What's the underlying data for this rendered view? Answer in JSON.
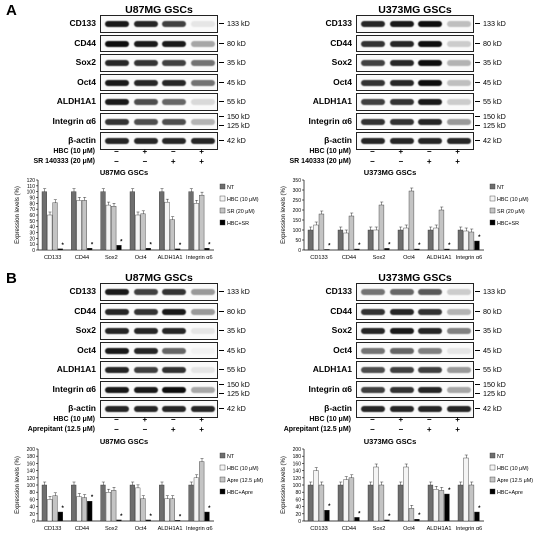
{
  "panels": [
    {
      "letter": "A",
      "blots": [
        {
          "title": "U87MG GSCs",
          "proteins": [
            "CD133",
            "CD44",
            "Sox2",
            "Oct4",
            "ALDH1A1",
            "Integrin α6",
            "β-actin"
          ],
          "kd": [
            [
              "133 kD"
            ],
            [
              "80 kD"
            ],
            [
              "35 kD"
            ],
            [
              "45 kD"
            ],
            [
              "55 kD"
            ],
            [
              "150 kD",
              "125 kD"
            ],
            [
              "42 kD"
            ]
          ],
          "intensity": [
            [
              0.9,
              0.85,
              0.75,
              0.1
            ],
            [
              0.95,
              0.9,
              0.9,
              0.35
            ],
            [
              0.85,
              0.8,
              0.75,
              0.55
            ],
            [
              0.9,
              0.85,
              0.85,
              0.55
            ],
            [
              0.9,
              0.7,
              0.6,
              0.15
            ],
            [
              0.8,
              0.7,
              0.7,
              0.3
            ],
            [
              0.85,
              0.85,
              0.85,
              0.85
            ]
          ],
          "treatments": [
            {
              "label": "HBC (10 μM)",
              "marks": [
                "−",
                "+",
                "−",
                "+"
              ]
            },
            {
              "label": "SR 140333 (20 μM)",
              "marks": [
                "−",
                "−",
                "+",
                "+"
              ]
            }
          ]
        },
        {
          "title": "U373MG GSCs",
          "proteins": [
            "CD133",
            "CD44",
            "Sox2",
            "Oct4",
            "ALDH1A1",
            "Integrin α6",
            "β-actin"
          ],
          "kd": [
            [
              "133 kD"
            ],
            [
              "80 kD"
            ],
            [
              "35 kD"
            ],
            [
              "45 kD"
            ],
            [
              "55 kD"
            ],
            [
              "150 kD",
              "125 kD"
            ],
            [
              "42 kD"
            ]
          ],
          "intensity": [
            [
              0.85,
              0.9,
              0.95,
              0.25
            ],
            [
              0.8,
              0.85,
              0.95,
              0.2
            ],
            [
              0.75,
              0.85,
              0.95,
              0.3
            ],
            [
              0.8,
              0.85,
              0.95,
              0.25
            ],
            [
              0.75,
              0.8,
              0.9,
              0.2
            ],
            [
              0.8,
              0.8,
              0.85,
              0.4
            ],
            [
              0.85,
              0.85,
              0.85,
              0.85
            ]
          ],
          "treatments": [
            {
              "label": "HBC (10 μM)",
              "marks": [
                "−",
                "+",
                "−",
                "+"
              ]
            },
            {
              "label": "SR 140333 (20 μM)",
              "marks": [
                "−",
                "−",
                "+",
                "+"
              ]
            }
          ]
        }
      ]
    },
    {
      "letter": "B",
      "blots": [
        {
          "title": "U87MG GSCs",
          "proteins": [
            "CD133",
            "CD44",
            "Sox2",
            "Oct4",
            "ALDH1A1",
            "Integrin α6",
            "β-actin"
          ],
          "kd": [
            [
              "133 kD"
            ],
            [
              "80 kD"
            ],
            [
              "35 kD"
            ],
            [
              "45 kD"
            ],
            [
              "55 kD"
            ],
            [
              "150 kD",
              "125 kD"
            ],
            [
              "42 kD"
            ]
          ],
          "intensity": [
            [
              0.9,
              0.75,
              0.8,
              0.4
            ],
            [
              0.85,
              0.8,
              0.9,
              0.4
            ],
            [
              0.85,
              0.85,
              0.85,
              0.1
            ],
            [
              0.9,
              0.85,
              0.6,
              0.05
            ],
            [
              0.85,
              0.75,
              0.8,
              0.1
            ],
            [
              0.9,
              0.9,
              0.95,
              0.35
            ],
            [
              0.85,
              0.85,
              0.85,
              0.85
            ]
          ],
          "treatments": [
            {
              "label": "HBC (10 μM)",
              "marks": [
                "−",
                "+",
                "−",
                "+"
              ]
            },
            {
              "label": "Aprepitant (12.5 μM)",
              "marks": [
                "−",
                "−",
                "+",
                "+"
              ]
            }
          ]
        },
        {
          "title": "U373MG GSCs",
          "proteins": [
            "CD133",
            "CD44",
            "Sox2",
            "Oct4",
            "ALDH1A1",
            "Integrin α6",
            "β-actin"
          ],
          "kd": [
            [
              "133 kD"
            ],
            [
              "80 kD"
            ],
            [
              "35 kD"
            ],
            [
              "45 kD"
            ],
            [
              "55 kD"
            ],
            [
              "150 kD",
              "125 kD"
            ],
            [
              "42 kD"
            ]
          ],
          "intensity": [
            [
              0.55,
              0.6,
              0.65,
              0.2
            ],
            [
              0.8,
              0.85,
              0.8,
              0.3
            ],
            [
              0.85,
              0.9,
              0.85,
              0.5
            ],
            [
              0.55,
              0.6,
              0.5,
              0.1
            ],
            [
              0.7,
              0.75,
              0.75,
              0.4
            ],
            [
              0.75,
              0.8,
              0.85,
              0.35
            ],
            [
              0.85,
              0.85,
              0.85,
              0.85
            ]
          ],
          "treatments": [
            {
              "label": "HBC (10 μM)",
              "marks": [
                "−",
                "+",
                "−",
                "+"
              ]
            },
            {
              "label": "Aprepitant (12.5 μM)",
              "marks": [
                "−",
                "−",
                "+",
                "+"
              ]
            }
          ]
        }
      ]
    }
  ],
  "chart_data": [
    {
      "type": "bar",
      "title": "U87MG GSCs",
      "ylabel": "Expression levels (%)",
      "ylim": [
        0,
        120
      ],
      "yticks": [
        0,
        10,
        20,
        30,
        40,
        50,
        60,
        70,
        80,
        90,
        100,
        110,
        120
      ],
      "categories": [
        "CD133",
        "CD44",
        "Sox2",
        "Oct4",
        "ALDH1A1",
        "Integrin α6"
      ],
      "series": [
        {
          "name": "NT",
          "values": [
            100,
            100,
            100,
            100,
            100,
            100
          ]
        },
        {
          "name": "HBC (10 μM)",
          "values": [
            60,
            85,
            77,
            60,
            82,
            80
          ]
        },
        {
          "name": "SR (20 μM)",
          "values": [
            81,
            85,
            75,
            62,
            52,
            94
          ]
        },
        {
          "name": "HBC+SR",
          "values": [
            2,
            3,
            8,
            3,
            2,
            3
          ]
        }
      ],
      "annotations": [
        "*"
      ],
      "legend": "right",
      "colors": [
        "#6e6e6e",
        "#f4f4f4",
        "#c4c4c4",
        "#000000"
      ]
    },
    {
      "type": "bar",
      "title": "U373MG GSCs",
      "ylabel": "Expression levels (%)",
      "ylim": [
        0,
        350
      ],
      "yticks": [
        0,
        50,
        100,
        150,
        200,
        250,
        300,
        350
      ],
      "categories": [
        "CD133",
        "CD44",
        "Sox2",
        "Oct4",
        "ALDH1A1",
        "Integrin α6"
      ],
      "series": [
        {
          "name": "NT",
          "values": [
            100,
            100,
            100,
            100,
            100,
            100
          ]
        },
        {
          "name": "HBC (10 μM)",
          "values": [
            125,
            85,
            100,
            110,
            110,
            95
          ]
        },
        {
          "name": "SR (20 μM)",
          "values": [
            180,
            170,
            225,
            295,
            200,
            90
          ]
        },
        {
          "name": "HBC+SR",
          "values": [
            3,
            5,
            8,
            5,
            5,
            45
          ]
        }
      ],
      "annotations": [
        "*"
      ],
      "legend": "right",
      "colors": [
        "#6e6e6e",
        "#f4f4f4",
        "#c4c4c4",
        "#000000"
      ]
    },
    {
      "type": "bar",
      "title": "U87MG GSCs",
      "ylabel": "Expression levels (%)",
      "ylim": [
        0,
        200
      ],
      "yticks": [
        0,
        20,
        40,
        60,
        80,
        100,
        120,
        140,
        160,
        180,
        200
      ],
      "categories": [
        "CD133",
        "CD44",
        "Sox2",
        "Oct4",
        "ALDH1A1",
        "Integrin α6"
      ],
      "series": [
        {
          "name": "NT",
          "values": [
            100,
            100,
            100,
            100,
            100,
            100
          ]
        },
        {
          "name": "HBC (10 μM)",
          "values": [
            60,
            68,
            80,
            92,
            62,
            120
          ]
        },
        {
          "name": "Apre (12.5 μM)",
          "values": [
            70,
            65,
            85,
            62,
            62,
            165
          ]
        },
        {
          "name": "HBC+Apre",
          "values": [
            25,
            55,
            3,
            3,
            2,
            25
          ]
        }
      ],
      "annotations": [
        "*"
      ],
      "legend": "right",
      "colors": [
        "#6e6e6e",
        "#f4f4f4",
        "#c4c4c4",
        "#000000"
      ]
    },
    {
      "type": "bar",
      "title": "U373MG GSCs",
      "ylabel": "Expression levels (%)",
      "ylim": [
        0,
        200
      ],
      "yticks": [
        0,
        20,
        40,
        60,
        80,
        100,
        120,
        140,
        160,
        180,
        200
      ],
      "categories": [
        "CD133",
        "CD44",
        "Sox2",
        "Oct4",
        "ALDH1A1",
        "Integrin α6"
      ],
      "series": [
        {
          "name": "NT",
          "values": [
            100,
            100,
            100,
            100,
            100,
            100
          ]
        },
        {
          "name": "HBC (10 μM)",
          "values": [
            140,
            115,
            150,
            150,
            88,
            175
          ]
        },
        {
          "name": "Apre (12.5 μM)",
          "values": [
            100,
            120,
            100,
            35,
            85,
            100
          ]
        },
        {
          "name": "HBC+Apre",
          "values": [
            30,
            10,
            3,
            5,
            75,
            25
          ]
        }
      ],
      "annotations": [
        "*"
      ],
      "legend": "right",
      "colors": [
        "#6e6e6e",
        "#f4f4f4",
        "#c4c4c4",
        "#000000"
      ]
    }
  ]
}
